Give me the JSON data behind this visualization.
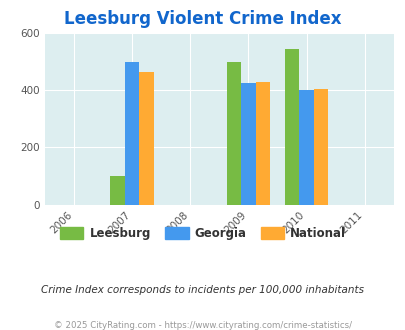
{
  "title": "Leesburg Violent Crime Index",
  "years": [
    2006,
    2007,
    2008,
    2009,
    2010,
    2011
  ],
  "bar_years": [
    2007,
    2009,
    2010
  ],
  "leesburg": [
    100,
    500,
    545
  ],
  "georgia": [
    500,
    425,
    400
  ],
  "national": [
    465,
    430,
    405
  ],
  "leesburg_color": "#77bb44",
  "georgia_color": "#4499ee",
  "national_color": "#ffaa33",
  "bg_color": "#ddeef0",
  "ylim": [
    0,
    600
  ],
  "yticks": [
    0,
    200,
    400,
    600
  ],
  "title_color": "#1166cc",
  "subtitle": "Crime Index corresponds to incidents per 100,000 inhabitants",
  "footer": "© 2025 CityRating.com - https://www.cityrating.com/crime-statistics/",
  "bar_width": 0.25
}
